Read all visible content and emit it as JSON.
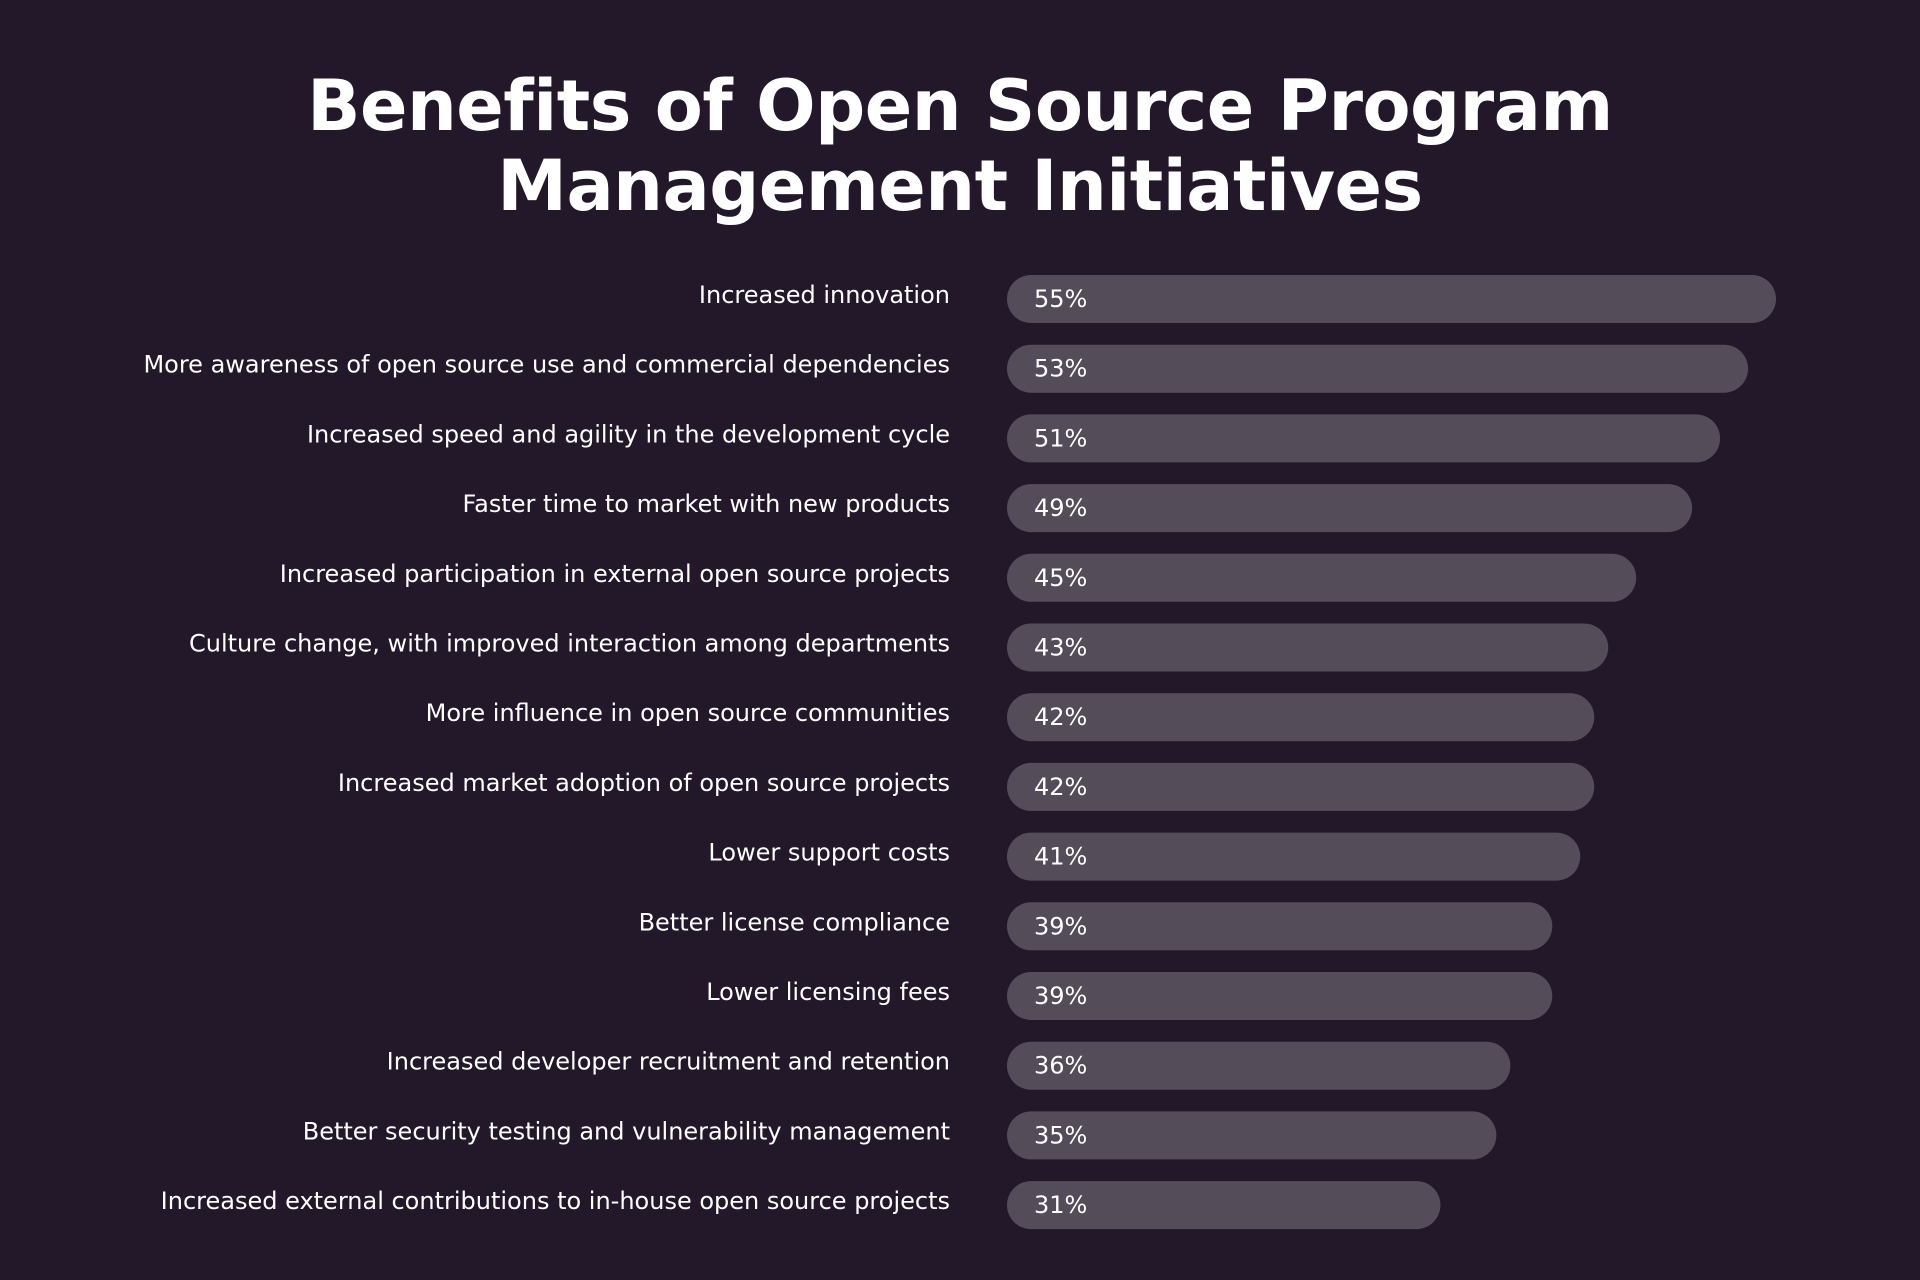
{
  "chart_data": {
    "type": "bar",
    "orientation": "horizontal",
    "title_lines": [
      "Benefits of Open Source Program",
      "Management Initiatives"
    ],
    "categories": [
      "Increased innovation",
      "More awareness of open source use and commercial dependencies",
      "Increased speed and agility in the development cycle",
      "Faster time to market with new products",
      "Increased participation in external open source projects",
      "Culture change, with improved interaction among departments",
      "More influence in open source communities",
      "Increased market adoption of open source projects",
      "Lower support costs",
      "Better license compliance",
      "Lower licensing fees",
      "Increased developer recruitment and retention",
      "Better security testing and vulnerability management",
      "Increased external contributions to in-house open source projects"
    ],
    "values": [
      55,
      53,
      51,
      49,
      45,
      43,
      42,
      42,
      41,
      39,
      39,
      36,
      35,
      31
    ],
    "value_labels": [
      "55%",
      "53%",
      "51%",
      "49%",
      "45%",
      "43%",
      "42%",
      "42%",
      "41%",
      "39%",
      "39%",
      "36%",
      "35%",
      "31%"
    ],
    "xlim": [
      0,
      55
    ],
    "grid": false,
    "legend": "none",
    "colors": {
      "background": "#22182a",
      "bar": "#544d59",
      "text": "#ffffff"
    }
  }
}
